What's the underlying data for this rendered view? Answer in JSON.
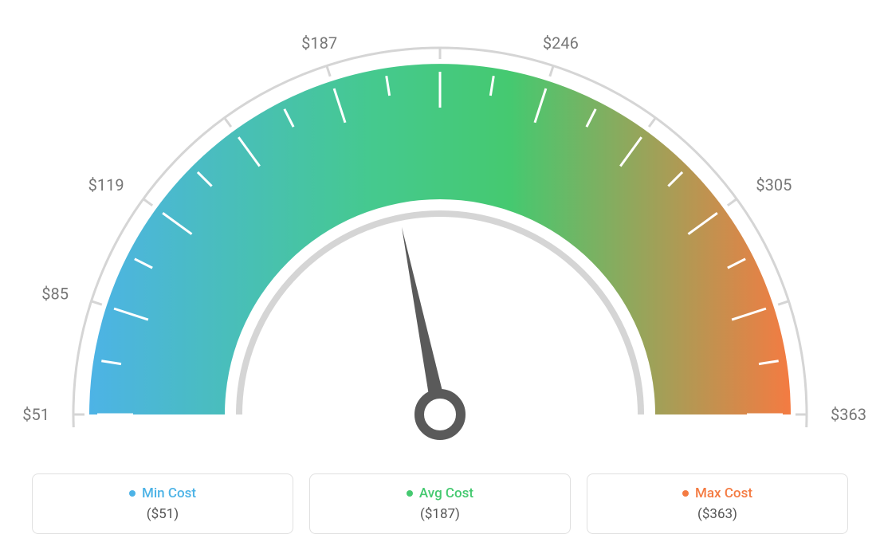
{
  "gauge": {
    "type": "gauge",
    "min_value": 51,
    "avg_value": 187,
    "max_value": 363,
    "needle_value": 187,
    "tick_labels": [
      "$51",
      "$85",
      "$119",
      "",
      "$187",
      "",
      "$246",
      "",
      "$305",
      "",
      "$363"
    ],
    "tick_label_positions": [
      0,
      18,
      36,
      54,
      72,
      90,
      108,
      126,
      144,
      162,
      180
    ],
    "major_ticks_count": 11,
    "minor_ticks_per_segment": 1,
    "outer_arc_color": "#d5d5d5",
    "outer_arc_width": 3,
    "gradient_colors": [
      "#4db3e6",
      "#45c98f",
      "#45c970",
      "#f47b42"
    ],
    "gradient_stops": [
      0,
      0.4,
      0.6,
      1.0
    ],
    "arc_inner_radius": 270,
    "arc_outer_radius": 440,
    "tick_color_inner": "#ffffff",
    "tick_color_outer": "#d5d5d5",
    "needle_color": "#5a5a5a",
    "needle_base_color": "#5a5a5a",
    "center_ring_color": "#5a5a5a",
    "background_color": "#ffffff"
  },
  "legend": {
    "items": [
      {
        "label": "Min Cost",
        "value": "($51)",
        "color": "#4db3e6"
      },
      {
        "label": "Avg Cost",
        "value": "($187)",
        "color": "#45c970"
      },
      {
        "label": "Max Cost",
        "value": "($363)",
        "color": "#f47b42"
      }
    ],
    "border_color": "#e0e0e0",
    "border_radius": 8,
    "label_fontsize": 17,
    "value_fontsize": 17,
    "value_color": "#555555"
  }
}
